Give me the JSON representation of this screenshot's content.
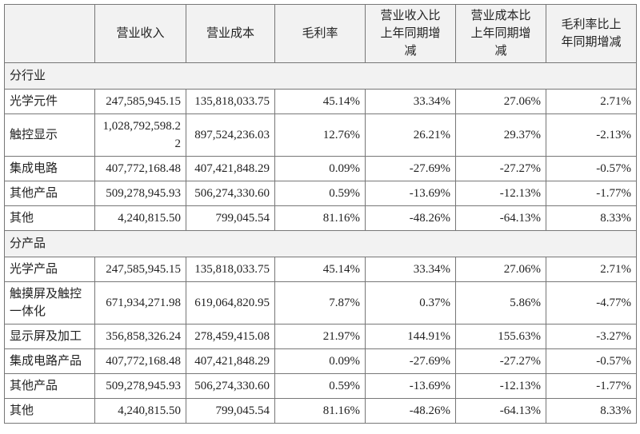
{
  "table": {
    "header": [
      "营业收入",
      "营业成本",
      "毛利率",
      "营业收入比上年同期增减",
      "营业成本比上年同期增减",
      "毛利率比上年同期增减"
    ],
    "sections": [
      {
        "title": "分行业",
        "rows": [
          [
            "光学元件",
            "247,585,945.15",
            "135,818,033.75",
            "45.14%",
            "33.34%",
            "27.06%",
            "2.71%"
          ],
          [
            "触控显示",
            "1,028,792,598.22",
            "897,524,236.03",
            "12.76%",
            "26.21%",
            "29.37%",
            "-2.13%"
          ],
          [
            "集成电路",
            "407,772,168.48",
            "407,421,848.29",
            "0.09%",
            "-27.69%",
            "-27.27%",
            "-0.57%"
          ],
          [
            "其他产品",
            "509,278,945.93",
            "506,274,330.60",
            "0.59%",
            "-13.69%",
            "-12.13%",
            "-1.77%"
          ],
          [
            "其他",
            "4,240,815.50",
            "799,045.54",
            "81.16%",
            "-48.26%",
            "-64.13%",
            "8.33%"
          ]
        ]
      },
      {
        "title": "分产品",
        "rows": [
          [
            "光学产品",
            "247,585,945.15",
            "135,818,033.75",
            "45.14%",
            "33.34%",
            "27.06%",
            "2.71%"
          ],
          [
            "触摸屏及触控一体化",
            "671,934,271.98",
            "619,064,820.95",
            "7.87%",
            "0.37%",
            "5.86%",
            "-4.77%"
          ],
          [
            "显示屏及加工",
            "356,858,326.24",
            "278,459,415.08",
            "21.97%",
            "144.91%",
            "155.63%",
            "-3.27%"
          ],
          [
            "集成电路产品",
            "407,772,168.48",
            "407,421,848.29",
            "0.09%",
            "-27.69%",
            "-27.27%",
            "-0.57%"
          ],
          [
            "其他产品",
            "509,278,945.93",
            "506,274,330.60",
            "0.59%",
            "-13.69%",
            "-12.13%",
            "-1.77%"
          ],
          [
            "其他",
            "4,240,815.50",
            "799,045.54",
            "81.16%",
            "-48.26%",
            "-64.13%",
            "8.33%"
          ]
        ]
      }
    ]
  }
}
